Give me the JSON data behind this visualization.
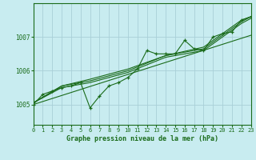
{
  "title": "Graphe pression niveau de la mer (hPa)",
  "bg_color": "#c8ecf0",
  "grid_color": "#a8d0d8",
  "line_color": "#1a6b1a",
  "x_min": 0,
  "x_max": 23,
  "y_min": 1004.4,
  "y_max": 1008.0,
  "y_ticks": [
    1005,
    1006,
    1007
  ],
  "x_ticks": [
    0,
    1,
    2,
    3,
    4,
    5,
    6,
    7,
    8,
    9,
    10,
    11,
    12,
    13,
    14,
    15,
    16,
    17,
    18,
    19,
    20,
    21,
    22,
    23
  ],
  "series_main": [
    [
      0,
      1005.0
    ],
    [
      1,
      1005.3
    ],
    [
      2,
      1005.4
    ],
    [
      3,
      1005.5
    ],
    [
      4,
      1005.55
    ],
    [
      5,
      1005.65
    ],
    [
      6,
      1004.9
    ],
    [
      7,
      1005.25
    ],
    [
      8,
      1005.55
    ],
    [
      9,
      1005.65
    ],
    [
      10,
      1005.8
    ],
    [
      11,
      1006.05
    ],
    [
      12,
      1006.6
    ],
    [
      13,
      1006.5
    ],
    [
      14,
      1006.5
    ],
    [
      15,
      1006.5
    ],
    [
      16,
      1006.9
    ],
    [
      17,
      1006.65
    ],
    [
      18,
      1006.6
    ],
    [
      19,
      1007.0
    ],
    [
      20,
      1007.1
    ],
    [
      21,
      1007.15
    ],
    [
      22,
      1007.5
    ],
    [
      23,
      1007.6
    ]
  ],
  "series_smooth1": [
    [
      0,
      1005.05
    ],
    [
      3,
      1005.55
    ],
    [
      6,
      1005.7
    ],
    [
      10,
      1006.0
    ],
    [
      14,
      1006.45
    ],
    [
      18,
      1006.65
    ],
    [
      22,
      1007.45
    ],
    [
      23,
      1007.6
    ]
  ],
  "series_smooth2": [
    [
      0,
      1005.05
    ],
    [
      3,
      1005.55
    ],
    [
      6,
      1005.75
    ],
    [
      10,
      1006.05
    ],
    [
      14,
      1006.45
    ],
    [
      18,
      1006.7
    ],
    [
      22,
      1007.5
    ],
    [
      23,
      1007.6
    ]
  ],
  "series_smooth3": [
    [
      0,
      1005.05
    ],
    [
      3,
      1005.5
    ],
    [
      6,
      1005.65
    ],
    [
      10,
      1005.95
    ],
    [
      14,
      1006.4
    ],
    [
      18,
      1006.6
    ],
    [
      22,
      1007.4
    ],
    [
      23,
      1007.55
    ]
  ],
  "series_linear": [
    [
      0,
      1005.0
    ],
    [
      23,
      1007.05
    ]
  ]
}
